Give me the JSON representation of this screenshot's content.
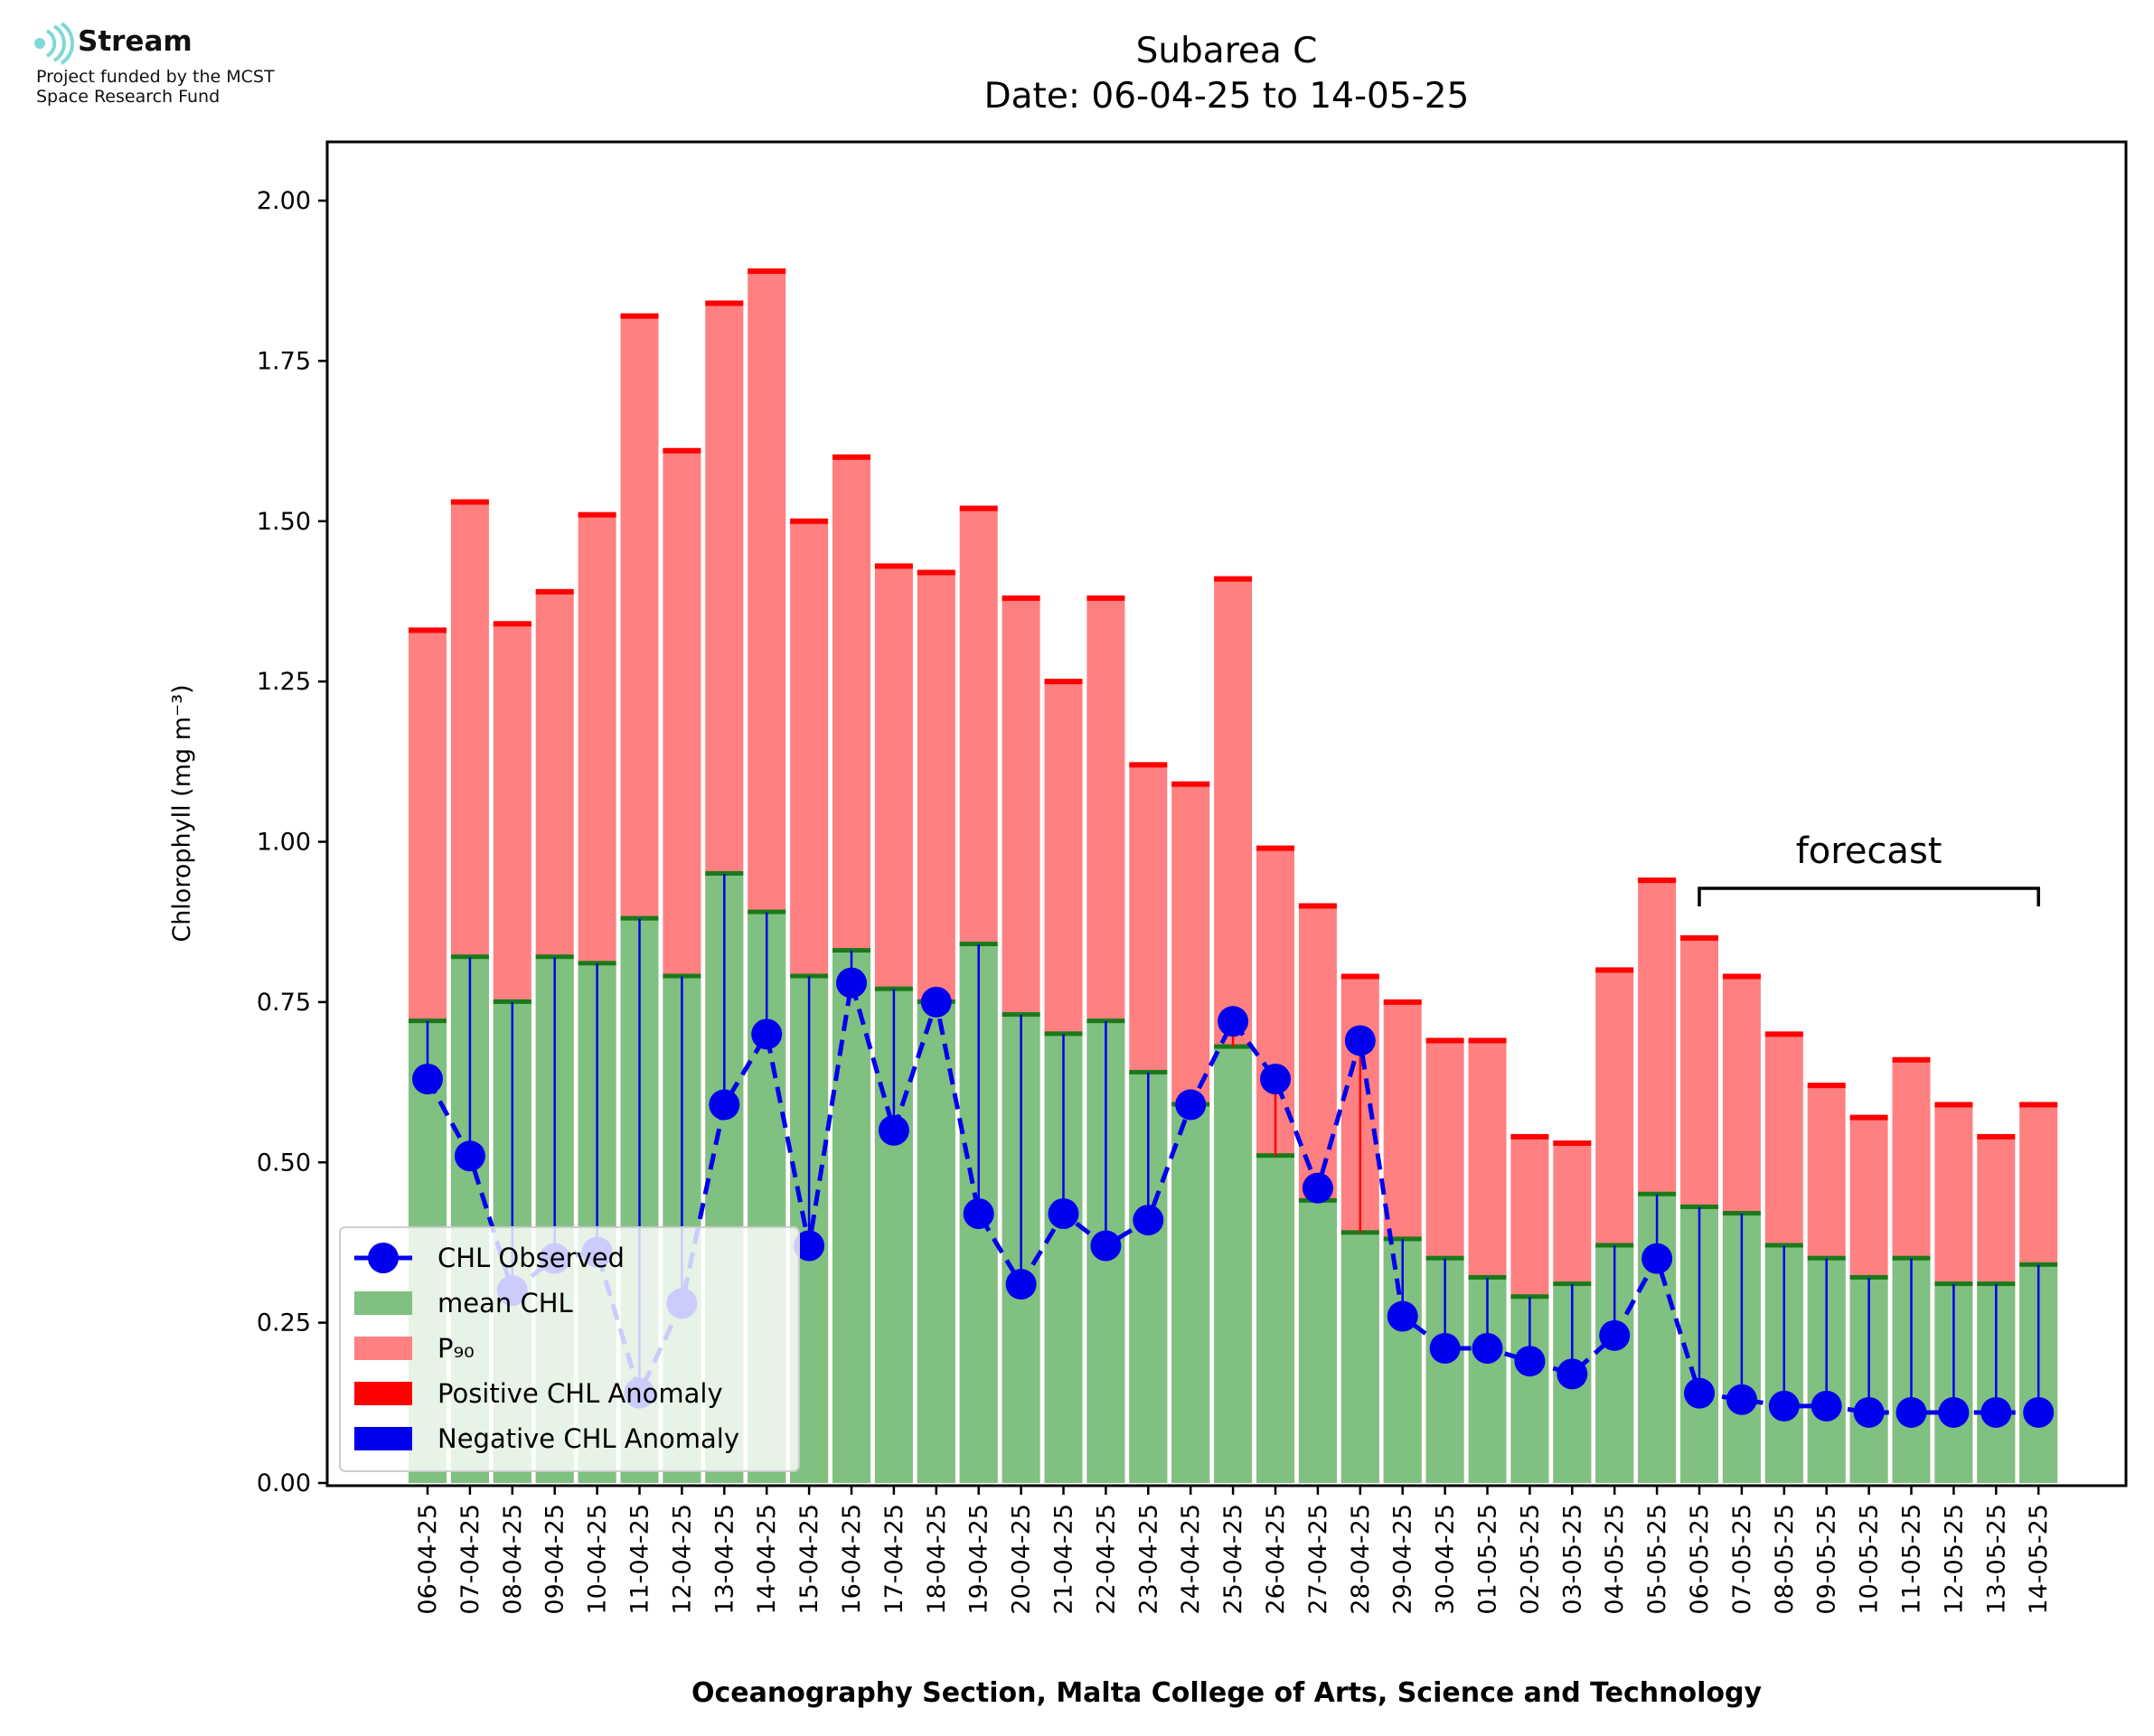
{
  "logo": {
    "name": "Stream",
    "line1": "Project funded by the MCST",
    "line2": "Space Research Fund",
    "icon": "stream-waves-icon",
    "color": "#7fd8d8"
  },
  "chart_data": {
    "type": "bar",
    "title": "Subarea C",
    "subtitle": "Date: 06-04-25 to 14-05-25",
    "xlabel": "Oceanography Section, Malta College of Arts, Science and Technology",
    "ylabel": "Chlorophyll (mg m⁻³)",
    "ylim": [
      0,
      2.09
    ],
    "yticks": [
      "0.00",
      "0.25",
      "0.50",
      "0.75",
      "1.00",
      "1.25",
      "1.50",
      "1.75",
      "2.00"
    ],
    "categories": [
      "06-04-25",
      "07-04-25",
      "08-04-25",
      "09-04-25",
      "10-04-25",
      "11-04-25",
      "12-04-25",
      "13-04-25",
      "14-04-25",
      "15-04-25",
      "16-04-25",
      "17-04-25",
      "18-04-25",
      "19-04-25",
      "20-04-25",
      "21-04-25",
      "22-04-25",
      "23-04-25",
      "24-04-25",
      "25-04-25",
      "26-04-25",
      "27-04-25",
      "28-04-25",
      "29-04-25",
      "30-04-25",
      "01-05-25",
      "02-05-25",
      "03-05-25",
      "04-05-25",
      "05-05-25",
      "06-05-25",
      "07-05-25",
      "08-05-25",
      "09-05-25",
      "10-05-25",
      "11-05-25",
      "12-05-25",
      "13-05-25",
      "14-05-25"
    ],
    "series": [
      {
        "name": "mean CHL",
        "color": "#80c080",
        "values": [
          0.72,
          0.82,
          0.75,
          0.82,
          0.81,
          0.88,
          0.79,
          0.95,
          0.89,
          0.79,
          0.83,
          0.77,
          0.75,
          0.84,
          0.73,
          0.7,
          0.72,
          0.64,
          0.59,
          0.68,
          0.51,
          0.44,
          0.39,
          0.38,
          0.35,
          0.32,
          0.29,
          0.31,
          0.37,
          0.45,
          0.43,
          0.42,
          0.37,
          0.35,
          0.32,
          0.35,
          0.31,
          0.31,
          0.34
        ]
      },
      {
        "name": "P₉₀",
        "color": "#ff8080",
        "values": [
          1.33,
          1.53,
          1.34,
          1.39,
          1.51,
          1.82,
          1.61,
          1.84,
          1.89,
          1.5,
          1.6,
          1.43,
          1.42,
          1.52,
          1.38,
          1.25,
          1.38,
          1.12,
          1.09,
          1.41,
          0.99,
          0.9,
          0.79,
          0.75,
          0.69,
          0.69,
          0.54,
          0.53,
          0.8,
          0.94,
          0.85,
          0.79,
          0.7,
          0.62,
          0.57,
          0.66,
          0.59,
          0.54,
          0.59
        ]
      },
      {
        "name": "CHL Observed",
        "color": "#0000ee",
        "values": [
          0.63,
          0.51,
          0.3,
          0.35,
          0.36,
          0.14,
          0.28,
          0.59,
          0.7,
          0.37,
          0.78,
          0.55,
          0.75,
          0.42,
          0.31,
          0.42,
          0.37,
          0.41,
          0.59,
          0.72,
          0.63,
          0.46,
          0.69,
          0.26,
          0.21,
          0.21,
          0.19,
          0.17,
          0.23,
          0.35,
          0.14,
          0.13,
          0.12,
          0.12,
          0.11,
          0.11,
          0.11,
          0.11,
          0.11
        ]
      }
    ],
    "anomaly_legend": [
      {
        "name": "Positive CHL Anomaly",
        "color": "#ff0000"
      },
      {
        "name": "Negative CHL Anomaly",
        "color": "#0000ee"
      }
    ],
    "annotation": {
      "text": "forecast",
      "from": "06-05-25",
      "to": "14-05-25"
    },
    "legend_position": "lower-left",
    "grid": false
  }
}
